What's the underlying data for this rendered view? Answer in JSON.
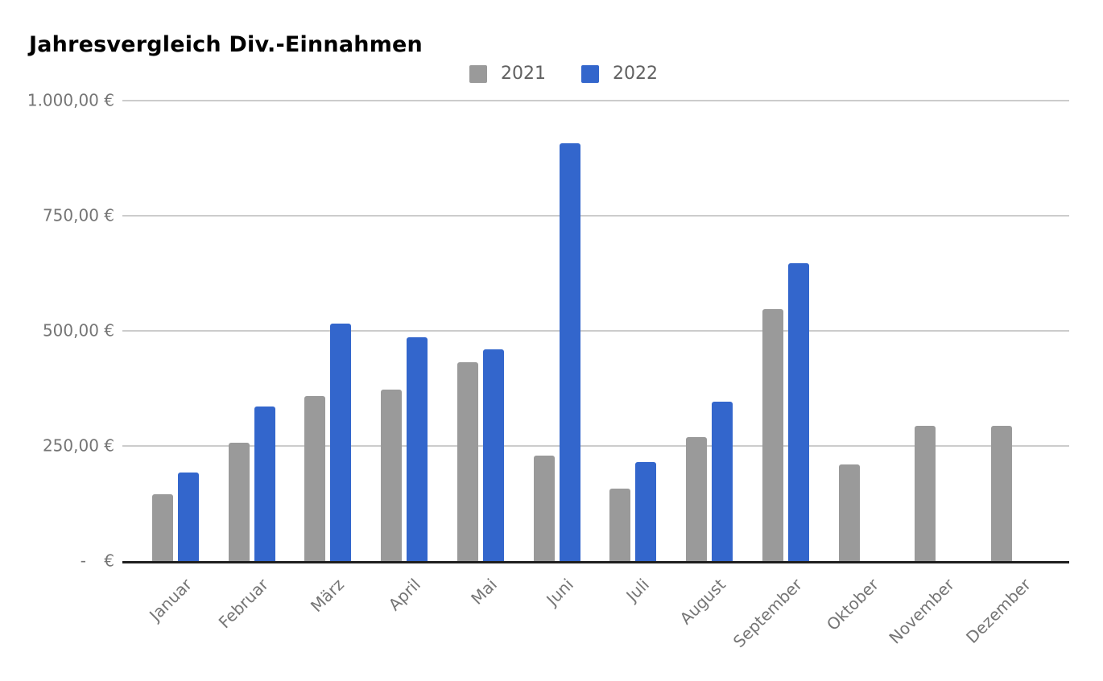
{
  "chart_data": {
    "type": "bar",
    "title": "Jahresvergleich Div.-Einnahmen",
    "categories": [
      "Januar",
      "Februar",
      "März",
      "April",
      "Mai",
      "Juni",
      "Juli",
      "August",
      "September",
      "Oktober",
      "November",
      "Dezember"
    ],
    "series": [
      {
        "name": "2021",
        "color": "#9a9a9a",
        "values": [
          145,
          257,
          358,
          372,
          432,
          229,
          157,
          269,
          547,
          210,
          294,
          294
        ]
      },
      {
        "name": "2022",
        "color": "#3366cc",
        "values": [
          192,
          336,
          516,
          486,
          460,
          907,
          215,
          346,
          647,
          0,
          0,
          0
        ]
      }
    ],
    "xlabel": "",
    "ylabel": "",
    "ylim": [
      0,
      1000
    ],
    "y_ticks": [
      {
        "value": 1000,
        "label": "1.000,00 €"
      },
      {
        "value": 750,
        "label": "750,00 €"
      },
      {
        "value": 500,
        "label": "500,00 €"
      },
      {
        "value": 250,
        "label": "250,00 €"
      },
      {
        "value": 0,
        "label": "- €"
      }
    ],
    "grid": true,
    "legend_position": "top",
    "colors": {
      "axis_text": "#757575",
      "legend_text": "#616161",
      "gridline": "#cccccc",
      "baseline": "#1f1f1f",
      "title_text": "#000000",
      "background": "#ffffff"
    }
  }
}
